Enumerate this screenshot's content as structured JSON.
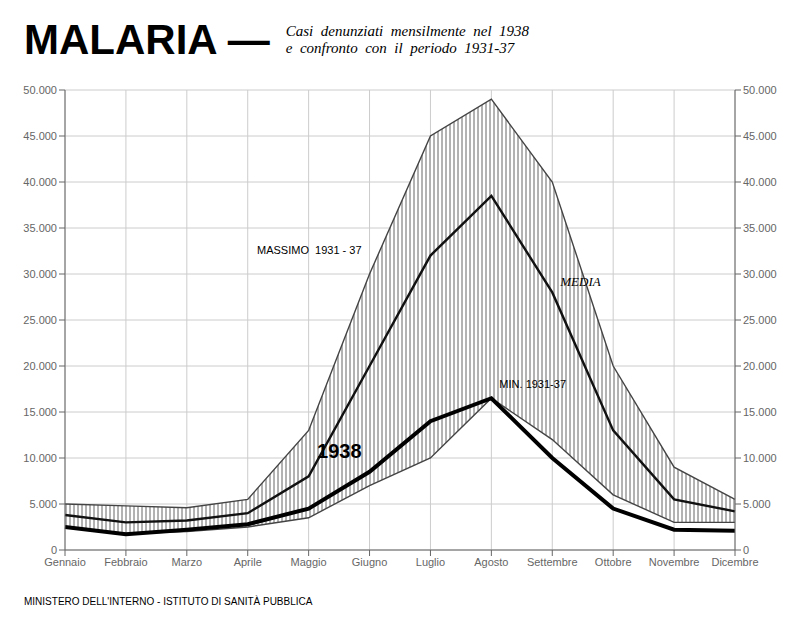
{
  "chart_data": {
    "type": "line",
    "title": "MALARIA —",
    "subtitle": [
      "Casi  denunziati  mensilmente  nel  1938",
      "e  confronto  con  il  periodo  1931-37"
    ],
    "footer": "MINISTERO DELL'INTERNO - ISTITUTO DI SANITÀ PUBBLICA",
    "categories": [
      "Gennaio",
      "Febbraio",
      "Marzo",
      "Aprile",
      "Maggio",
      "Giugno",
      "Luglio",
      "Agosto",
      "Settembre",
      "Ottobre",
      "Novembre",
      "Dicembre"
    ],
    "series": [
      {
        "name": "MASSIMO  1931 - 37",
        "color": "#444444",
        "values": [
          5000,
          4800,
          4600,
          5500,
          13000,
          30000,
          45000,
          49000,
          40000,
          20000,
          9000,
          5500
        ]
      },
      {
        "name": "MIN. 1931-37",
        "color": "#444444",
        "values": [
          2500,
          1800,
          2000,
          2500,
          3500,
          7000,
          10000,
          16500,
          12000,
          6000,
          3000,
          3000
        ]
      },
      {
        "name": "MEDIA",
        "color": "#111111",
        "values": [
          3800,
          3000,
          3200,
          4000,
          8000,
          20000,
          32000,
          38500,
          28000,
          13000,
          5500,
          4200
        ]
      },
      {
        "name": "1938",
        "color": "#000000",
        "values": [
          2500,
          1700,
          2200,
          2800,
          4500,
          8500,
          14000,
          16500,
          10000,
          4500,
          2200,
          2100
        ]
      }
    ],
    "ylim": [
      0,
      50000
    ],
    "yticks": [
      0,
      {
        "value": 5000,
        "label": "5.000"
      },
      {
        "value": 10000,
        "label": "10.000"
      },
      {
        "value": 15000,
        "label": "15.000"
      },
      {
        "value": 20000,
        "label": "20.000"
      },
      {
        "value": 25000,
        "label": "25.000"
      },
      {
        "value": 30000,
        "label": "30.000"
      },
      {
        "value": 35000,
        "label": "35.000"
      },
      {
        "value": 40000,
        "label": "40.000"
      },
      {
        "value": 45000,
        "label": "45.000"
      },
      {
        "value": 50000,
        "label": "50.000"
      }
    ],
    "y2lim": [
      0,
      50000
    ],
    "y2ticks": [
      0,
      {
        "value": 5000,
        "label": "5.000"
      },
      {
        "value": 10000,
        "label": "10.000"
      },
      {
        "value": 15000,
        "label": "15.000"
      },
      {
        "value": 20000,
        "label": "20.000"
      },
      {
        "value": 25000,
        "label": "25.000"
      },
      {
        "value": 30000,
        "label": "30.000"
      },
      {
        "value": 35000,
        "label": "35.000"
      },
      {
        "value": 40000,
        "label": "40.000"
      },
      {
        "value": 45000,
        "label": "45.000"
      },
      {
        "value": 50000,
        "label": "50.000"
      }
    ],
    "grid": true
  }
}
